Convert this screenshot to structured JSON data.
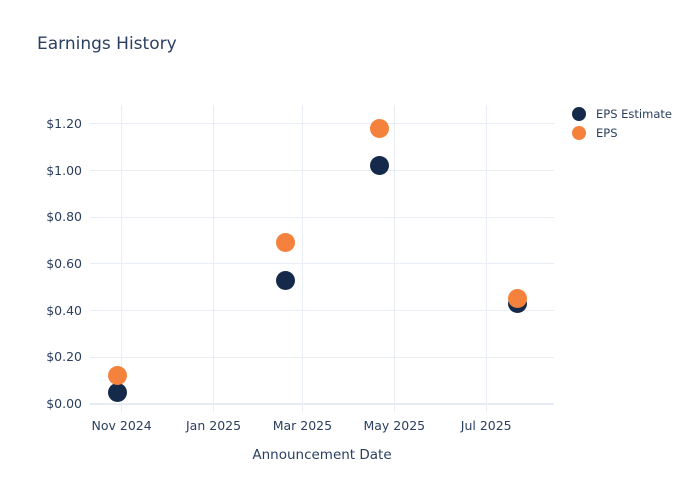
{
  "page": {
    "background": "#ffffff"
  },
  "chart_data": {
    "type": "scatter",
    "title": "Earnings History",
    "xlabel": "Announcement Date",
    "ylabel": "",
    "legend_position": "right",
    "grid": true,
    "grid_color": "#e9edf6",
    "text_color": "#2a3f5f",
    "marker_size_px": 19,
    "x_axis": {
      "range": [
        "2024-10-11",
        "2025-08-15"
      ],
      "ticks": [
        {
          "label": "Nov 2024",
          "date": "2024-11-01"
        },
        {
          "label": "Jan 2025",
          "date": "2025-01-01"
        },
        {
          "label": "Mar 2025",
          "date": "2025-03-01"
        },
        {
          "label": "May 2025",
          "date": "2025-05-01"
        },
        {
          "label": "Jul 2025",
          "date": "2025-07-01"
        }
      ]
    },
    "y_axis": {
      "range": [
        -0.026,
        1.281
      ],
      "ticks": [
        {
          "label": "$0.00",
          "value": 0.0
        },
        {
          "label": "$0.20",
          "value": 0.2
        },
        {
          "label": "$0.40",
          "value": 0.4
        },
        {
          "label": "$0.60",
          "value": 0.6
        },
        {
          "label": "$0.80",
          "value": 0.8
        },
        {
          "label": "$1.00",
          "value": 1.0
        },
        {
          "label": "$1.20",
          "value": 1.2
        }
      ]
    },
    "series": [
      {
        "name": "EPS Estimate",
        "color": "#15294a",
        "points": [
          {
            "date": "2024-10-29",
            "value": 0.05
          },
          {
            "date": "2025-02-18",
            "value": 0.53
          },
          {
            "date": "2025-04-21",
            "value": 1.02
          },
          {
            "date": "2025-07-22",
            "value": 0.43
          }
        ]
      },
      {
        "name": "EPS",
        "color": "#f5823c",
        "points": [
          {
            "date": "2024-10-29",
            "value": 0.12
          },
          {
            "date": "2025-02-18",
            "value": 0.69
          },
          {
            "date": "2025-04-21",
            "value": 1.18
          },
          {
            "date": "2025-07-22",
            "value": 0.45
          }
        ]
      }
    ]
  }
}
